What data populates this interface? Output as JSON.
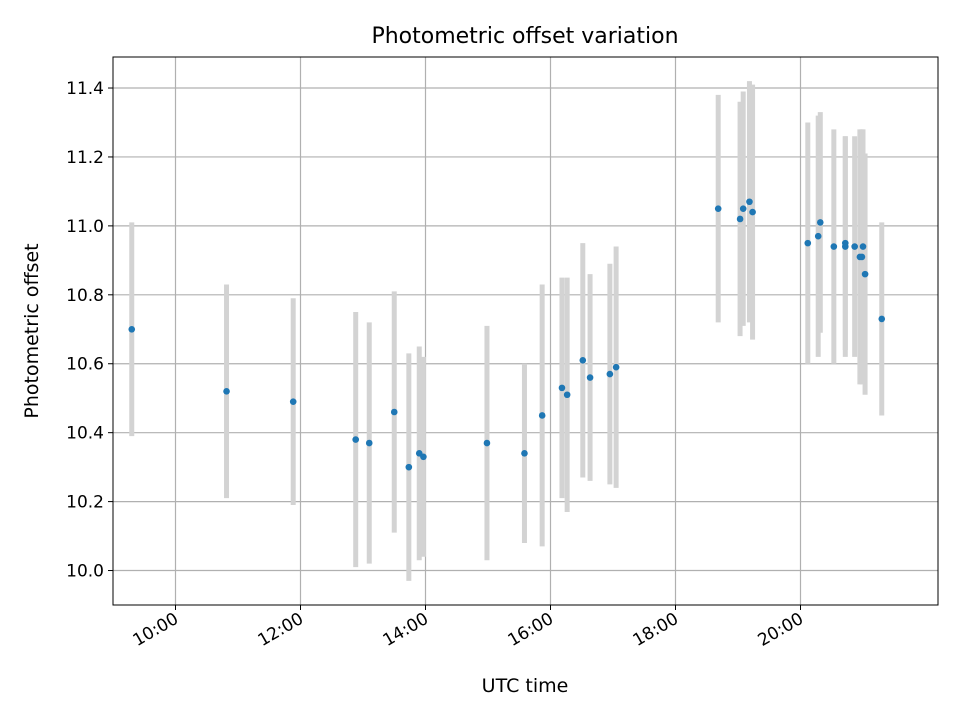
{
  "chart_data": {
    "type": "scatter",
    "title": "Photometric offset variation",
    "xlabel": "UTC time",
    "ylabel": "Photometric offset",
    "x_unit": "time",
    "xlim": [
      "09:00",
      "22:12"
    ],
    "ylim": [
      9.9,
      11.49
    ],
    "xticks": [
      "10:00",
      "12:00",
      "14:00",
      "16:00",
      "18:00",
      "20:00"
    ],
    "yticks": [
      "10.0",
      "10.2",
      "10.4",
      "10.6",
      "10.8",
      "11.0",
      "11.2",
      "11.4"
    ],
    "grid": true,
    "colors": {
      "point": "#1f77b4",
      "errorbar": "#d3d3d3",
      "grid": "#b0b0b0"
    },
    "points": [
      {
        "x": "09:18",
        "y": 10.7,
        "err": 0.31
      },
      {
        "x": "10:49",
        "y": 10.52,
        "err": 0.31
      },
      {
        "x": "11:53",
        "y": 10.49,
        "err": 0.3
      },
      {
        "x": "12:53",
        "y": 10.38,
        "err": 0.37
      },
      {
        "x": "13:06",
        "y": 10.37,
        "err": 0.35
      },
      {
        "x": "13:30",
        "y": 10.46,
        "err": 0.35
      },
      {
        "x": "13:44",
        "y": 10.3,
        "err": 0.33
      },
      {
        "x": "13:54",
        "y": 10.34,
        "err": 0.31
      },
      {
        "x": "13:58",
        "y": 10.33,
        "err": 0.29
      },
      {
        "x": "14:59",
        "y": 10.37,
        "err": 0.34
      },
      {
        "x": "15:35",
        "y": 10.34,
        "err": 0.26
      },
      {
        "x": "15:52",
        "y": 10.45,
        "err": 0.38
      },
      {
        "x": "16:11",
        "y": 10.53,
        "err": 0.32
      },
      {
        "x": "16:16",
        "y": 10.51,
        "err": 0.34
      },
      {
        "x": "16:31",
        "y": 10.61,
        "err": 0.34
      },
      {
        "x": "16:38",
        "y": 10.56,
        "err": 0.3
      },
      {
        "x": "16:57",
        "y": 10.57,
        "err": 0.32
      },
      {
        "x": "17:03",
        "y": 10.59,
        "err": 0.35
      },
      {
        "x": "18:41",
        "y": 11.05,
        "err": 0.33
      },
      {
        "x": "19:02",
        "y": 11.02,
        "err": 0.34
      },
      {
        "x": "19:05",
        "y": 11.05,
        "err": 0.34
      },
      {
        "x": "19:11",
        "y": 11.07,
        "err": 0.35
      },
      {
        "x": "19:14",
        "y": 11.04,
        "err": 0.37
      },
      {
        "x": "20:07",
        "y": 10.95,
        "err": 0.35
      },
      {
        "x": "20:17",
        "y": 10.97,
        "err": 0.35
      },
      {
        "x": "20:19",
        "y": 11.01,
        "err": 0.32
      },
      {
        "x": "20:32",
        "y": 10.94,
        "err": 0.34
      },
      {
        "x": "20:43",
        "y": 10.94,
        "err": 0.32
      },
      {
        "x": "20:43",
        "y": 10.95,
        "err": 0.31
      },
      {
        "x": "20:52",
        "y": 10.94,
        "err": 0.32
      },
      {
        "x": "20:57",
        "y": 10.91,
        "err": 0.37
      },
      {
        "x": "20:59",
        "y": 10.91,
        "err": 0.37
      },
      {
        "x": "21:00",
        "y": 10.94,
        "err": 0.34
      },
      {
        "x": "21:02",
        "y": 10.86,
        "err": 0.35
      },
      {
        "x": "21:18",
        "y": 10.73,
        "err": 0.28
      }
    ]
  }
}
